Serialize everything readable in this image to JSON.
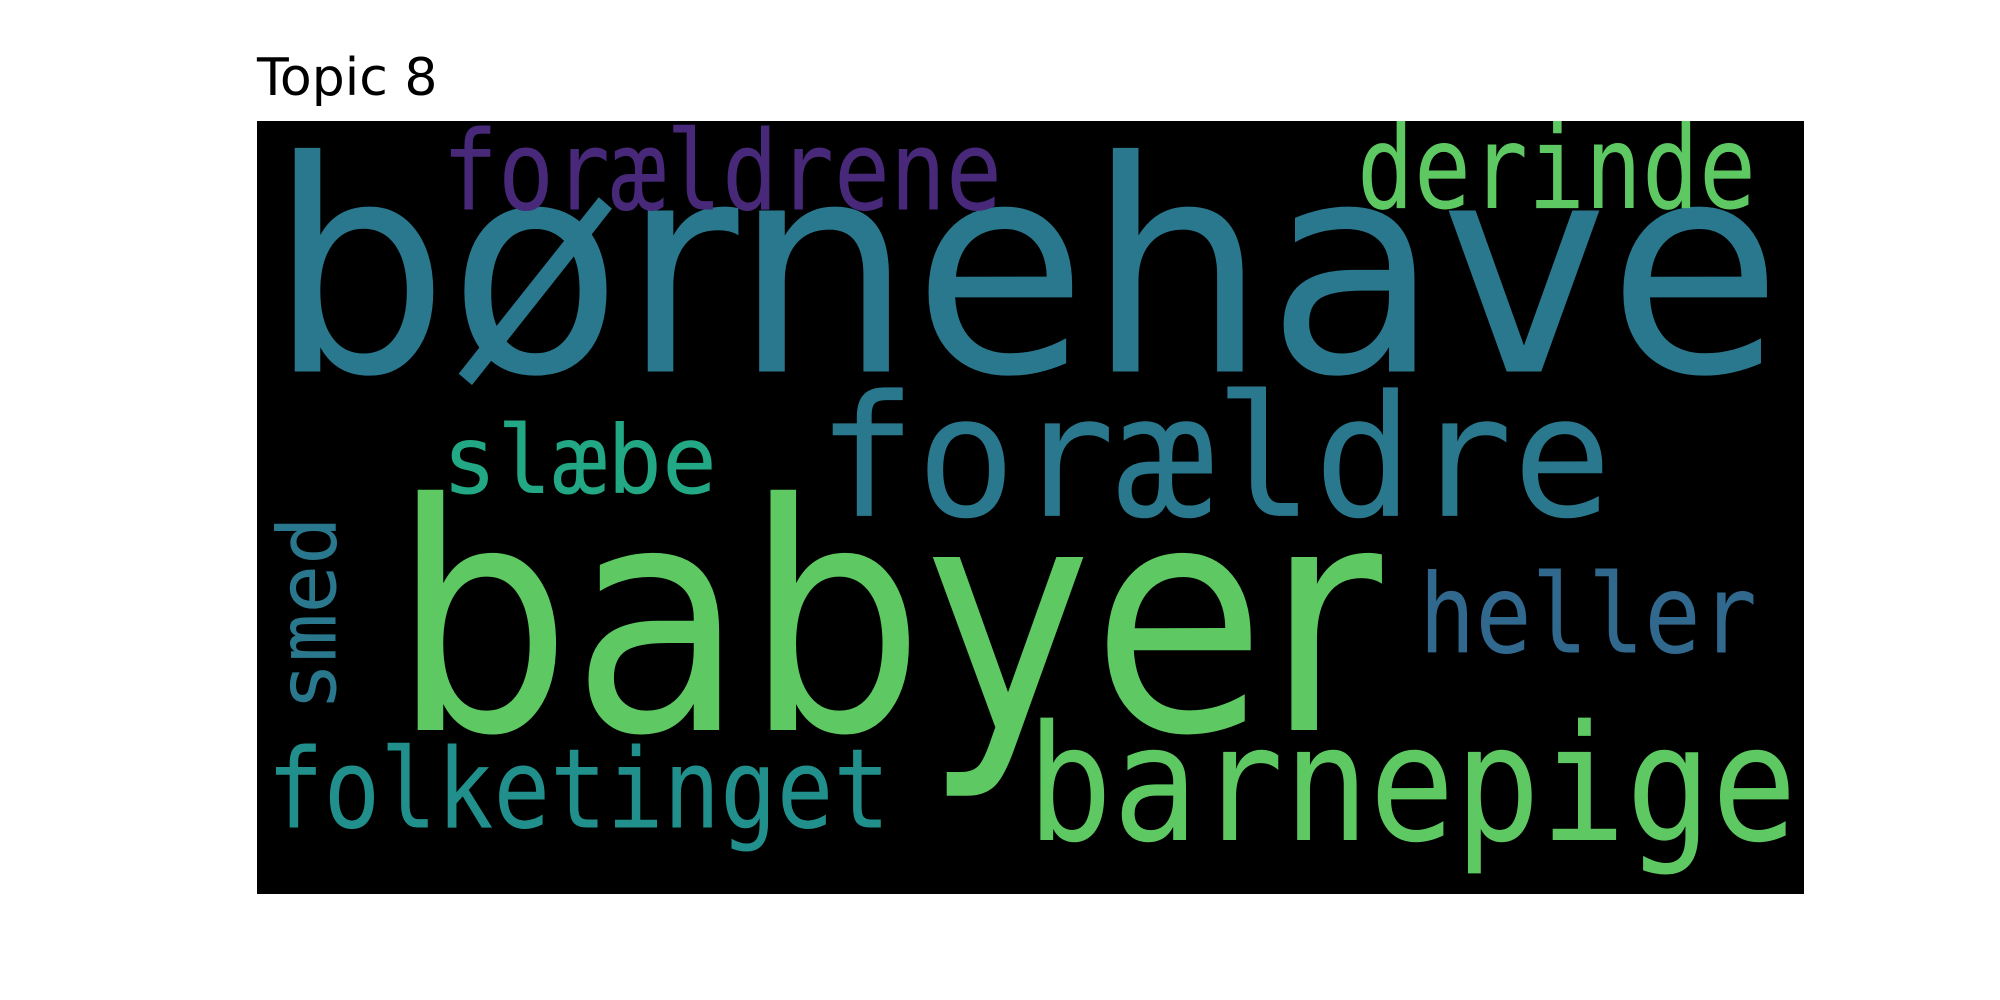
{
  "chart_data": {
    "type": "wordcloud",
    "title": "Topic 8",
    "background": "#000000",
    "words": [
      {
        "text": "børnehave",
        "weight": 1.0,
        "color": "#2a788e",
        "orientation": "horizontal"
      },
      {
        "text": "babyer",
        "weight": 0.95,
        "color": "#5ec962",
        "orientation": "horizontal"
      },
      {
        "text": "forældre",
        "weight": 0.62,
        "color": "#2a788e",
        "orientation": "horizontal"
      },
      {
        "text": "barnepige",
        "weight": 0.54,
        "color": "#5ec962",
        "orientation": "horizontal"
      },
      {
        "text": "derinde",
        "weight": 0.38,
        "color": "#5ec962",
        "orientation": "horizontal"
      },
      {
        "text": "forældrene",
        "weight": 0.38,
        "color": "#482878",
        "orientation": "horizontal"
      },
      {
        "text": "heller",
        "weight": 0.38,
        "color": "#31688e",
        "orientation": "horizontal"
      },
      {
        "text": "folketinget",
        "weight": 0.38,
        "color": "#21908d",
        "orientation": "horizontal"
      },
      {
        "text": "slæbe",
        "weight": 0.36,
        "color": "#22a884",
        "orientation": "horizontal"
      },
      {
        "text": "smed",
        "weight": 0.34,
        "color": "#2a788e",
        "orientation": "vertical"
      }
    ]
  }
}
